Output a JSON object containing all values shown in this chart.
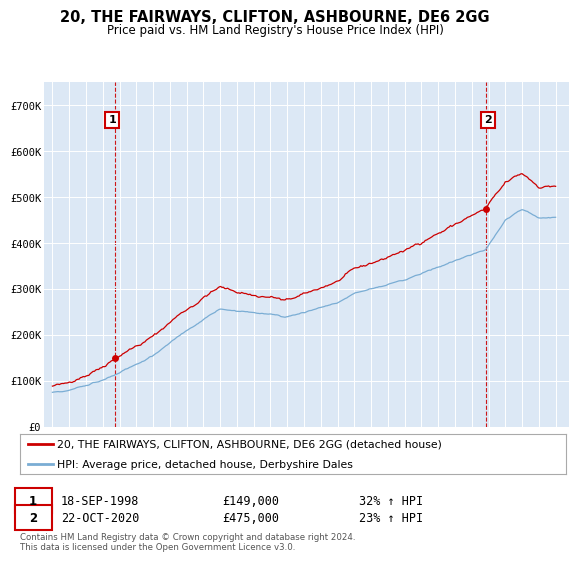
{
  "title": "20, THE FAIRWAYS, CLIFTON, ASHBOURNE, DE6 2GG",
  "subtitle": "Price paid vs. HM Land Registry's House Price Index (HPI)",
  "legend_property": "20, THE FAIRWAYS, CLIFTON, ASHBOURNE, DE6 2GG (detached house)",
  "legend_hpi": "HPI: Average price, detached house, Derbyshire Dales",
  "property_color": "#cc0000",
  "hpi_color": "#7aadd4",
  "sale1_date": "18-SEP-1998",
  "sale1_price": 149000,
  "sale1_label": "1",
  "sale1_pct": "32% ↑ HPI",
  "sale2_date": "22-OCT-2020",
  "sale2_price": 475000,
  "sale2_label": "2",
  "sale2_pct": "23% ↑ HPI",
  "ylim": [
    0,
    750000
  ],
  "yticks": [
    0,
    100000,
    200000,
    300000,
    400000,
    500000,
    600000,
    700000
  ],
  "ytick_labels": [
    "£0",
    "£100K",
    "£200K",
    "£300K",
    "£400K",
    "£500K",
    "£600K",
    "£700K"
  ],
  "background_color": "#ffffff",
  "plot_bg_color": "#dce8f5",
  "footer": "Contains HM Land Registry data © Crown copyright and database right 2024.\nThis data is licensed under the Open Government Licence v3.0.",
  "start_year": 1995,
  "end_year": 2025
}
